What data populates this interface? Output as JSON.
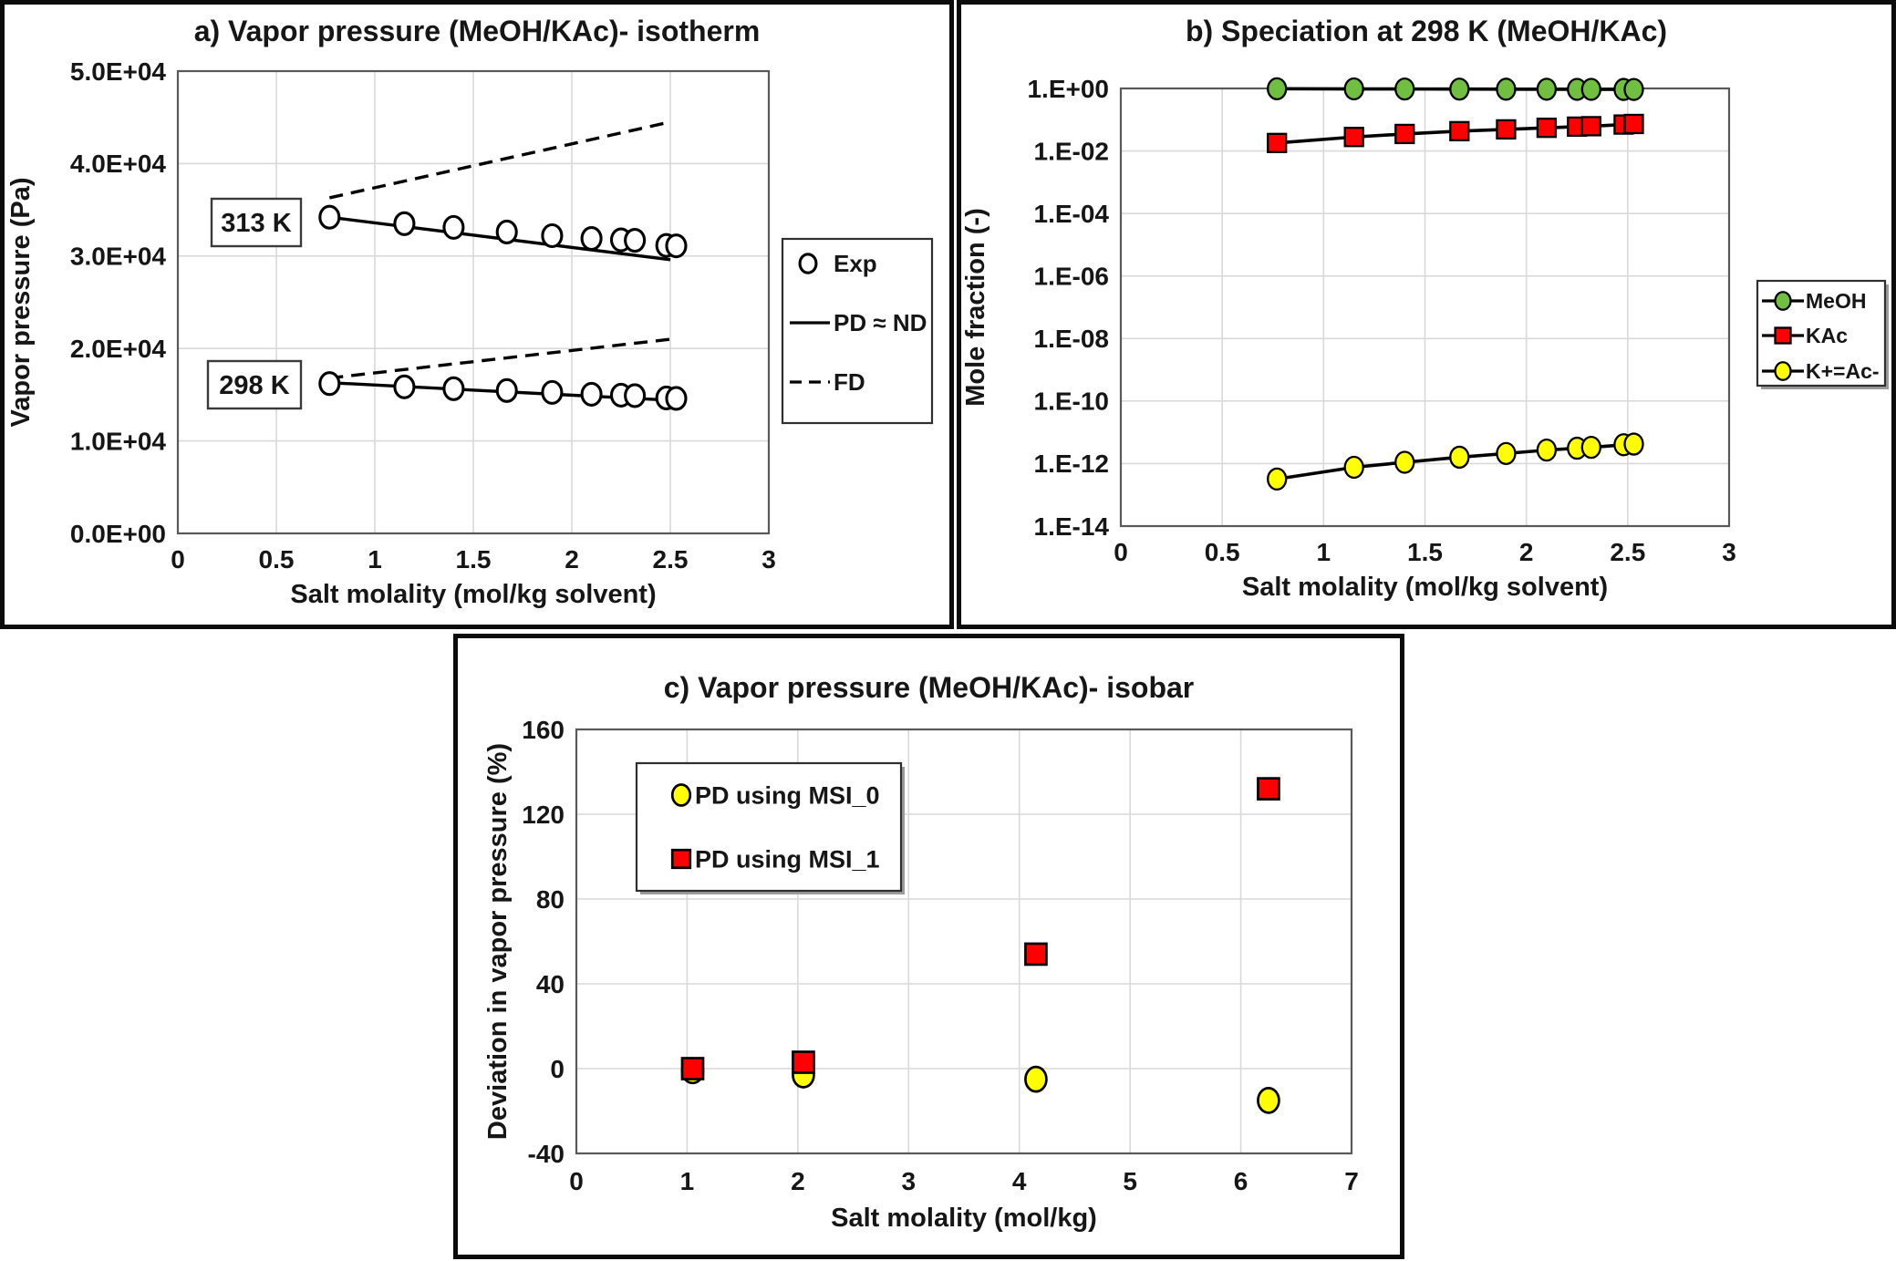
{
  "colors": {
    "meoh_green": "#70bf41",
    "kac_red": "#ff0000",
    "ion_yellow": "#ffff00",
    "exp_marker_fill": "#ffffff",
    "line_black": "#000000",
    "gridline": "#d9d9d9",
    "plot_border": "#595959",
    "panel_border": "#0b0b0b"
  },
  "chart_data": [
    {
      "id": "a",
      "type": "scatter",
      "title": "a) Vapor pressure (MeOH/KAc)- isotherm",
      "xlabel": "Salt molality (mol/kg solvent)",
      "ylabel": "Vapor pressure (Pa)",
      "xlim": [
        0,
        3
      ],
      "ylim": [
        0,
        50000
      ],
      "x_tick_values": [
        0,
        0.5,
        1,
        1.5,
        2,
        2.5,
        3
      ],
      "x_tick_labels": [
        "0",
        "0.5",
        "1",
        "1.5",
        "2",
        "2.5",
        "3"
      ],
      "y_tick_values": [
        0,
        10000,
        20000,
        30000,
        40000,
        50000
      ],
      "y_tick_labels": [
        "0.0E+00",
        "1.0E+04",
        "2.0E+04",
        "3.0E+04",
        "4.0E+04",
        "5.0E+04"
      ],
      "grid": true,
      "annotations": [
        {
          "text": "313 K"
        },
        {
          "text": "298 K"
        }
      ],
      "legend": {
        "items": [
          {
            "label": "Exp",
            "marker": "open-circle"
          },
          {
            "label": "PD ≈ ND",
            "line": "solid"
          },
          {
            "label": "FD",
            "line": "dashed"
          }
        ]
      },
      "series": [
        {
          "name": "FD 313 K",
          "kind": "line",
          "style": "dashed",
          "color": "#000000",
          "x": [
            0.77,
            2.5
          ],
          "y": [
            36300,
            44500
          ]
        },
        {
          "name": "PD-ND 313 K",
          "kind": "line",
          "style": "solid",
          "color": "#000000",
          "x": [
            0.77,
            2.5
          ],
          "y": [
            34200,
            29600
          ]
        },
        {
          "name": "FD 298 K",
          "kind": "line",
          "style": "dashed",
          "color": "#000000",
          "x": [
            0.77,
            2.5
          ],
          "y": [
            16800,
            21000
          ]
        },
        {
          "name": "PD-ND 298 K",
          "kind": "line",
          "style": "solid",
          "color": "#000000",
          "x": [
            0.77,
            2.5
          ],
          "y": [
            16300,
            14400
          ]
        },
        {
          "name": "Exp 313 K",
          "kind": "scatter",
          "marker": "circle",
          "marker_color": "#ffffff",
          "x": [
            0.77,
            1.15,
            1.4,
            1.67,
            1.9,
            2.1,
            2.25,
            2.32,
            2.48,
            2.53
          ],
          "y": [
            34200,
            33500,
            33100,
            32600,
            32200,
            31900,
            31750,
            31700,
            31150,
            31100
          ]
        },
        {
          "name": "Exp 298 K",
          "kind": "scatter",
          "marker": "circle",
          "marker_color": "#ffffff",
          "x": [
            0.77,
            1.15,
            1.4,
            1.67,
            1.9,
            2.1,
            2.25,
            2.32,
            2.48,
            2.53
          ],
          "y": [
            16200,
            15850,
            15650,
            15450,
            15250,
            15050,
            14950,
            14900,
            14650,
            14600
          ]
        }
      ]
    },
    {
      "id": "b",
      "type": "line",
      "title": "b) Speciation at 298 K (MeOH/KAc)",
      "xlabel": "Salt molality (mol/kg solvent)",
      "ylabel": "Mole fraction (-)",
      "xlim": [
        0,
        3
      ],
      "ylim": [
        1e-14,
        1
      ],
      "y_log": true,
      "x_tick_values": [
        0,
        0.5,
        1,
        1.5,
        2,
        2.5,
        3
      ],
      "x_tick_labels": [
        "0",
        "0.5",
        "1",
        "1.5",
        "2",
        "2.5",
        "3"
      ],
      "y_tick_values": [
        1,
        0.01,
        0.0001,
        1e-06,
        1e-08,
        1e-10,
        1e-12,
        1e-14
      ],
      "y_tick_labels": [
        "1.E+00",
        "1.E-02",
        "1.E-04",
        "1.E-06",
        "1.E-08",
        "1.E-10",
        "1.E-12",
        "1.E-14"
      ],
      "grid": true,
      "legend": {
        "items": [
          {
            "label": "MeOH",
            "marker": "circle",
            "color": "#70bf41",
            "line": "solid"
          },
          {
            "label": "KAc",
            "marker": "square",
            "color": "#ff0000",
            "line": "solid"
          },
          {
            "label": "K+=Ac-",
            "marker": "circle",
            "color": "#ffff00",
            "line": "solid"
          }
        ]
      },
      "series": [
        {
          "name": "MeOH",
          "kind": "line+scatter",
          "style": "solid",
          "color": "#000000",
          "marker": "circle",
          "marker_color": "#70bf41",
          "x": [
            0.77,
            1.15,
            1.4,
            1.67,
            1.9,
            2.1,
            2.25,
            2.32,
            2.48,
            2.53
          ],
          "y": [
            0.976,
            0.966,
            0.959,
            0.952,
            0.946,
            0.941,
            0.937,
            0.935,
            0.93,
            0.928
          ]
        },
        {
          "name": "KAc",
          "kind": "line+scatter",
          "style": "solid",
          "color": "#000000",
          "marker": "square",
          "marker_color": "#ff0000",
          "x": [
            0.77,
            1.15,
            1.4,
            1.67,
            1.9,
            2.1,
            2.25,
            2.32,
            2.48,
            2.53
          ],
          "y": [
            0.018,
            0.028,
            0.035,
            0.043,
            0.049,
            0.055,
            0.06,
            0.062,
            0.07,
            0.073
          ]
        },
        {
          "name": "K+=Ac-",
          "kind": "line+scatter",
          "style": "solid",
          "color": "#000000",
          "marker": "circle",
          "marker_color": "#ffff00",
          "x": [
            0.77,
            1.15,
            1.4,
            1.67,
            1.9,
            2.1,
            2.25,
            2.32,
            2.48,
            2.53
          ],
          "y": [
            3.2e-13,
            7.6e-13,
            1.1e-12,
            1.6e-12,
            2.1e-12,
            2.7e-12,
            3.1e-12,
            3.3e-12,
            4e-12,
            4.2e-12
          ]
        }
      ]
    },
    {
      "id": "c",
      "type": "scatter",
      "title": "c) Vapor pressure (MeOH/KAc)- isobar",
      "xlabel": "Salt molality (mol/kg)",
      "ylabel": "Deviation in vapor pressure (%)",
      "xlim": [
        0,
        7
      ],
      "ylim": [
        -40,
        160
      ],
      "x_tick_values": [
        0,
        1,
        2,
        3,
        4,
        5,
        6,
        7
      ],
      "x_tick_labels": [
        "0",
        "1",
        "2",
        "3",
        "4",
        "5",
        "6",
        "7"
      ],
      "y_tick_values": [
        -40,
        0,
        40,
        80,
        120,
        160
      ],
      "y_tick_labels": [
        "-40",
        "0",
        "40",
        "80",
        "120",
        "160"
      ],
      "grid": true,
      "legend": {
        "items": [
          {
            "label": "PD using MSI_0",
            "marker": "circle",
            "color": "#ffff00"
          },
          {
            "label": "PD using MSI_1",
            "marker": "square",
            "color": "#ff0000"
          }
        ]
      },
      "series": [
        {
          "name": "PD using MSI_0",
          "kind": "scatter",
          "marker": "circle",
          "marker_color": "#ffff00",
          "x": [
            1.05,
            2.05,
            4.15,
            6.25
          ],
          "y": [
            -1,
            -3,
            -5,
            -15
          ]
        },
        {
          "name": "PD using MSI_1",
          "kind": "scatter",
          "marker": "square",
          "marker_color": "#ff0000",
          "x": [
            1.05,
            2.05,
            4.15,
            6.25
          ],
          "y": [
            0,
            3,
            54,
            132
          ]
        }
      ]
    }
  ]
}
